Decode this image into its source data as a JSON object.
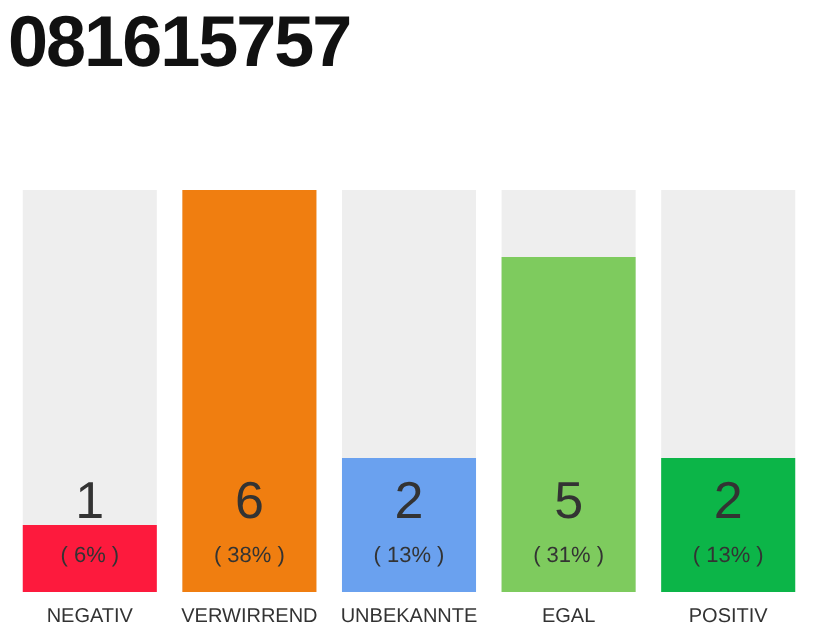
{
  "chart_data": {
    "type": "bar",
    "title": "081615757",
    "categories": [
      "NEGATIV",
      "VERWIRREND",
      "UNBEKANNTE",
      "EGAL",
      "POSITIV"
    ],
    "values": [
      1,
      6,
      2,
      5,
      2
    ],
    "colors": [
      "#fd1a3d",
      "#f07e10",
      "#6aa1ef",
      "#7ecb5e",
      "#0cb548"
    ],
    "ylim": [
      0,
      6
    ],
    "tick_labels": "x",
    "grid": false,
    "legend": false,
    "data_labels": true,
    "annotations": [
      "( 6% )",
      "( 38% )",
      "( 13% )",
      "( 31% )",
      "( 13% )"
    ]
  }
}
